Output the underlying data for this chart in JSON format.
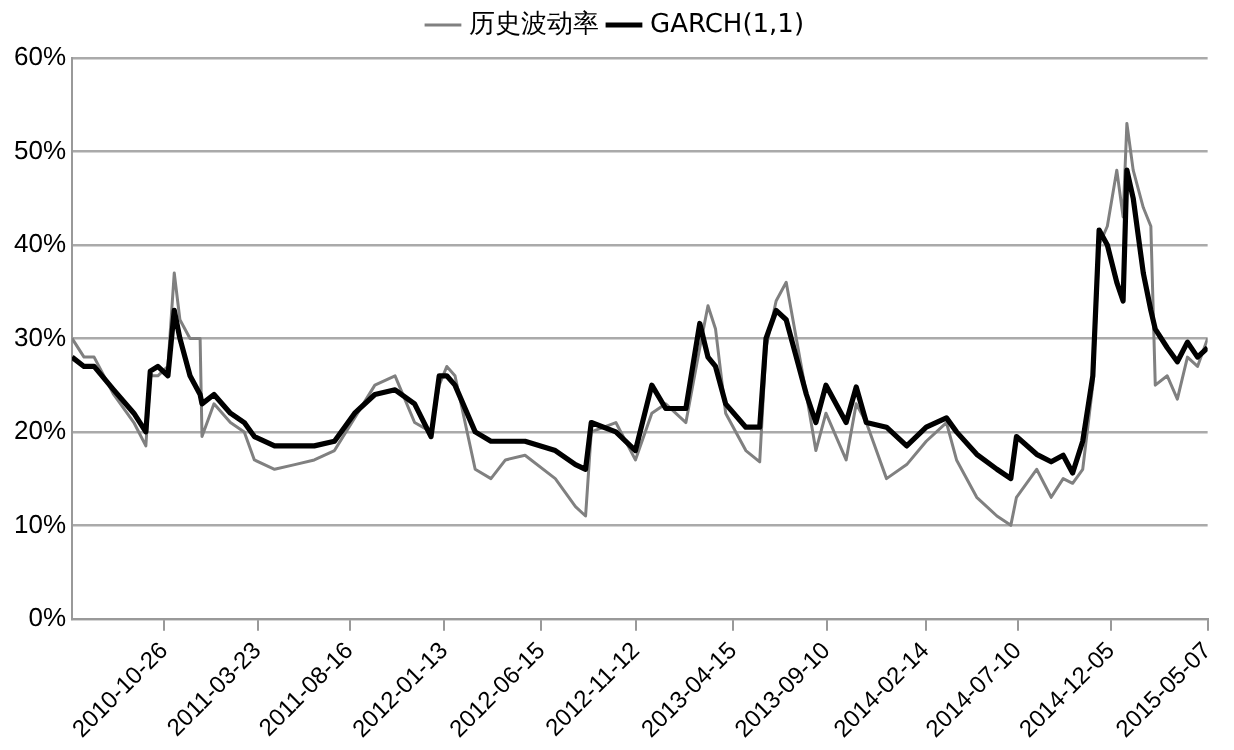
{
  "chart_data": {
    "type": "line",
    "x": [
      "2010-06-02",
      "2010-06-21",
      "2010-07-07",
      "2010-08-07",
      "2010-09-08",
      "2010-09-27",
      "2010-10-04",
      "2010-10-16",
      "2010-11-01",
      "2010-11-11",
      "2010-11-20",
      "2010-12-06",
      "2010-12-22",
      "2010-12-25",
      "2011-01-13",
      "2011-02-08",
      "2011-03-02",
      "2011-03-18",
      "2011-04-19",
      "2011-05-21",
      "2011-06-21",
      "2011-07-23",
      "2011-08-24",
      "2011-09-25",
      "2011-10-27",
      "2011-11-27",
      "2011-12-23",
      "2012-01-05",
      "2012-01-17",
      "2012-01-30",
      "2012-03-02",
      "2012-03-27",
      "2012-04-19",
      "2012-05-20",
      "2012-07-07",
      "2012-08-08",
      "2012-08-24",
      "2012-09-02",
      "2012-10-11",
      "2012-11-11",
      "2012-12-07",
      "2012-12-29",
      "2013-01-30",
      "2013-02-21",
      "2013-03-06",
      "2013-03-18",
      "2013-04-03",
      "2013-05-05",
      "2013-05-27",
      "2013-06-06",
      "2013-06-22",
      "2013-07-08",
      "2013-07-24",
      "2013-08-09",
      "2013-08-24",
      "2013-09-09",
      "2013-10-11",
      "2013-10-27",
      "2013-11-12",
      "2013-12-14",
      "2014-01-15",
      "2014-02-15",
      "2014-03-19",
      "2014-04-04",
      "2014-05-06",
      "2014-06-07",
      "2014-06-29",
      "2014-07-08",
      "2014-08-09",
      "2014-09-01",
      "2014-09-20",
      "2014-10-05",
      "2014-10-21",
      "2014-11-06",
      "2014-11-16",
      "2014-11-29",
      "2014-12-14",
      "2014-12-24",
      "2014-12-30",
      "2015-01-09",
      "2015-01-25",
      "2015-02-06",
      "2015-02-13",
      "2015-03-04",
      "2015-03-20",
      "2015-04-05",
      "2015-04-21",
      "2015-05-07"
    ],
    "series": [
      {
        "name": "历史波动率",
        "color": "#808080",
        "values": [
          30,
          28,
          28,
          24,
          21,
          18.5,
          26,
          26,
          27,
          37,
          32,
          30,
          30,
          19.5,
          23,
          21,
          20,
          17,
          16,
          16.5,
          17,
          18,
          21.5,
          25,
          26,
          21,
          20,
          25,
          27,
          26,
          16,
          15,
          17,
          17.5,
          15,
          12,
          11,
          20,
          21,
          17,
          22,
          23,
          21,
          29,
          33.5,
          31,
          22,
          18,
          16.8,
          29,
          34,
          36,
          30,
          24,
          18,
          22,
          17,
          23,
          21,
          15,
          16.5,
          19,
          21,
          17,
          13,
          11,
          10,
          13,
          16,
          13,
          15,
          14.5,
          16,
          25,
          40,
          42,
          48,
          43,
          53,
          48,
          44,
          42,
          25,
          26,
          23.5,
          28,
          27,
          30
        ]
      },
      {
        "name": "GARCH(1,1)",
        "color": "#000000",
        "values": [
          28,
          27,
          27,
          24.5,
          22,
          20,
          26.5,
          27,
          26,
          33,
          30,
          26,
          24,
          23,
          24,
          22,
          21,
          19.5,
          18.5,
          18.5,
          18.5,
          19,
          22,
          24,
          24.5,
          23,
          19.5,
          26,
          26,
          25,
          20,
          19,
          19,
          19,
          18,
          16.5,
          16,
          21,
          20,
          18,
          25,
          22.5,
          22.5,
          31.6,
          28,
          27,
          23,
          20.5,
          20.5,
          30,
          33,
          32,
          28,
          24,
          21,
          25,
          21,
          24.8,
          21,
          20.5,
          18.5,
          20.5,
          21.5,
          20,
          17.6,
          16,
          15,
          19.5,
          17.6,
          16.8,
          17.5,
          15.6,
          19,
          26,
          41.6,
          40,
          36,
          34,
          48,
          45,
          37,
          33,
          31,
          29,
          27.5,
          29.6,
          28,
          29
        ]
      }
    ],
    "xlim": [
      "2010-06-02",
      "2015-05-07"
    ],
    "xticks": [
      "2010-10-26",
      "2011-03-23",
      "2011-08-16",
      "2012-01-13",
      "2012-06-15",
      "2012-11-12",
      "2013-04-15",
      "2013-09-10",
      "2014-02-14",
      "2014-07-10",
      "2014-12-05",
      "2015-05-07"
    ],
    "ylim": [
      0,
      60
    ],
    "yticks": [
      {
        "value": 0,
        "label": "0%"
      },
      {
        "value": 10,
        "label": "10%"
      },
      {
        "value": 20,
        "label": "20%"
      },
      {
        "value": 30,
        "label": "30%"
      },
      {
        "value": 40,
        "label": "40%"
      },
      {
        "value": 50,
        "label": "50%"
      },
      {
        "value": 60,
        "label": "60%"
      }
    ],
    "grid": "y",
    "legend": "top",
    "marker": "none",
    "line_style": "solid"
  }
}
